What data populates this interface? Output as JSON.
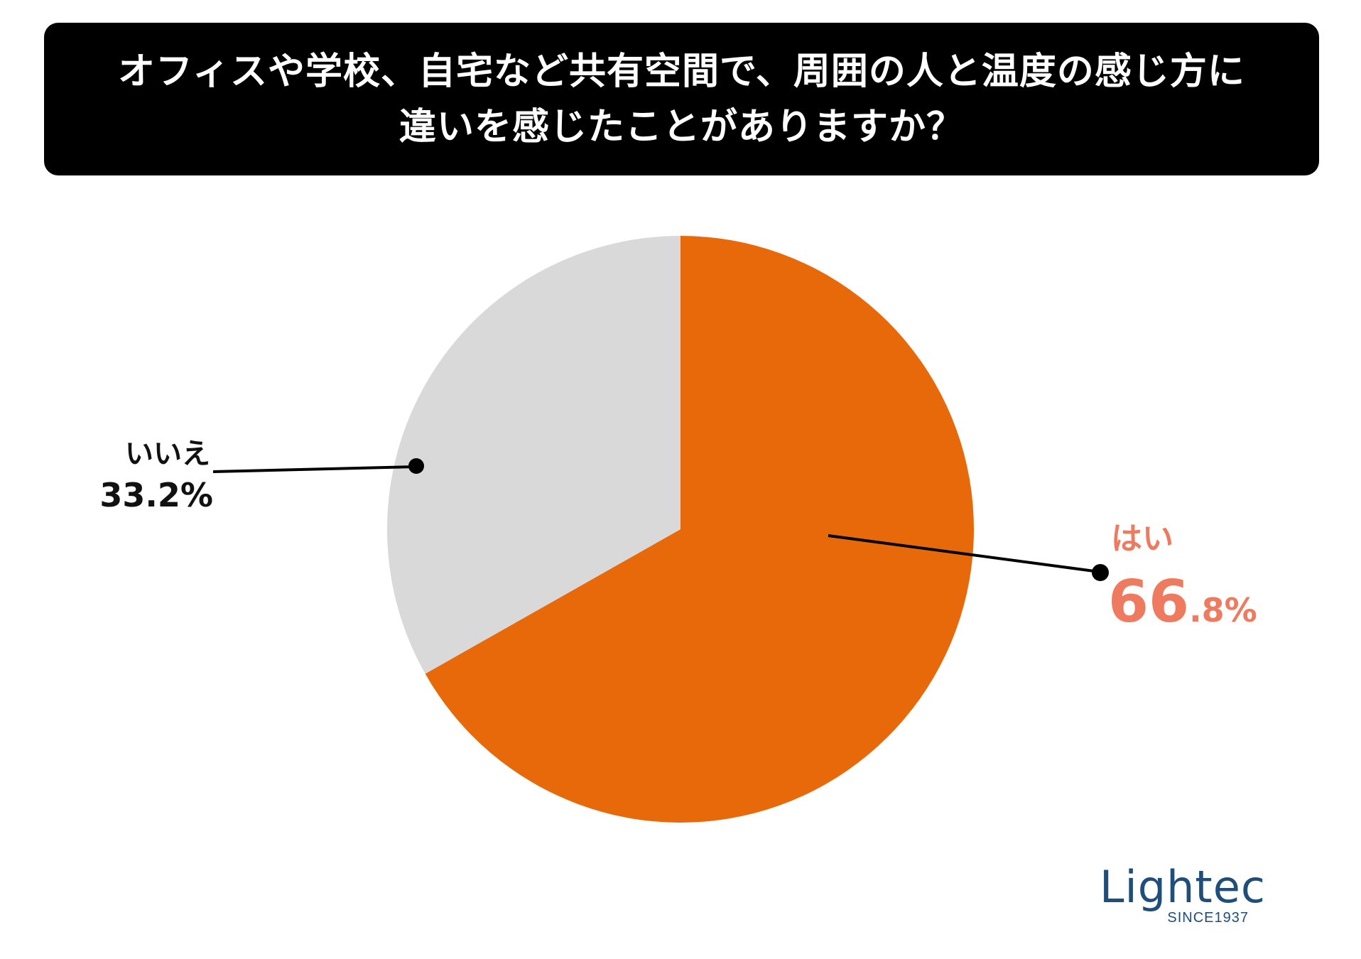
{
  "header": {
    "title_line1": "オフィスや学校、自宅など共有空間で、周囲の人と温度の感じ方に",
    "title_line2": "違いを感じたことがありますか？"
  },
  "chart_data": {
    "type": "pie",
    "title": "オフィスや学校、自宅など共有空間で、周囲の人と温度の感じ方に違いを感じたことがありますか？",
    "slices": [
      {
        "label": "はい",
        "value": 66.8,
        "value_label_main": "66",
        "value_label_rest": ".8%",
        "color": "#e8690a"
      },
      {
        "label": "いいえ",
        "value": 33.2,
        "value_label": "33.2%",
        "color": "#d9d9d9"
      }
    ],
    "start": "12 o'clock, clockwise",
    "label_color_yes": "#ee7b5f",
    "label_color_no": "#111111"
  },
  "logo": {
    "name": "Lightec",
    "since": "SINCE1937"
  }
}
